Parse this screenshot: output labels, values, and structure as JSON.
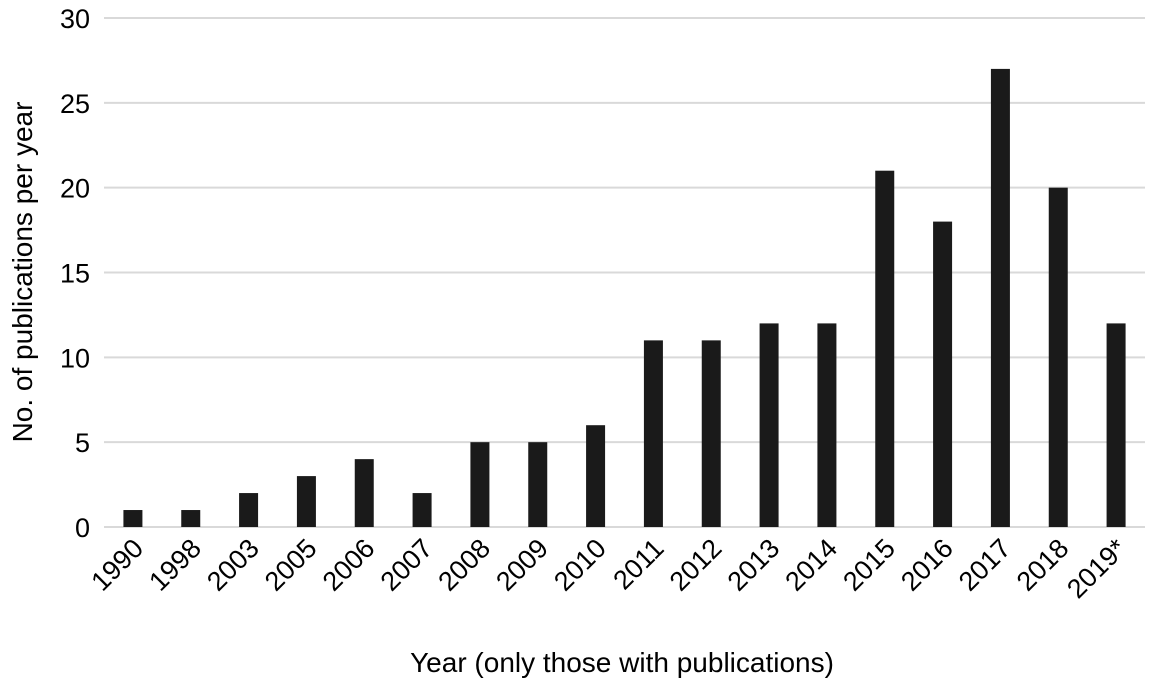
{
  "chart_data": {
    "type": "bar",
    "categories": [
      "1990",
      "1998",
      "2003",
      "2005",
      "2006",
      "2007",
      "2008",
      "2009",
      "2010",
      "2011",
      "2012",
      "2013",
      "2014",
      "2015",
      "2016",
      "2017",
      "2018",
      "2019*"
    ],
    "values": [
      1,
      1,
      2,
      3,
      4,
      2,
      5,
      5,
      6,
      11,
      11,
      12,
      12,
      21,
      18,
      27,
      20,
      12
    ],
    "xlabel": "Year (only those with publications)",
    "ylabel": "No. of publications per year",
    "ylim": [
      0,
      30
    ],
    "yticks": [
      0,
      5,
      10,
      15,
      20,
      25,
      30
    ],
    "grid": true,
    "colors": {
      "bar": "#1a1a1a",
      "grid": "#d9d9d9"
    }
  }
}
